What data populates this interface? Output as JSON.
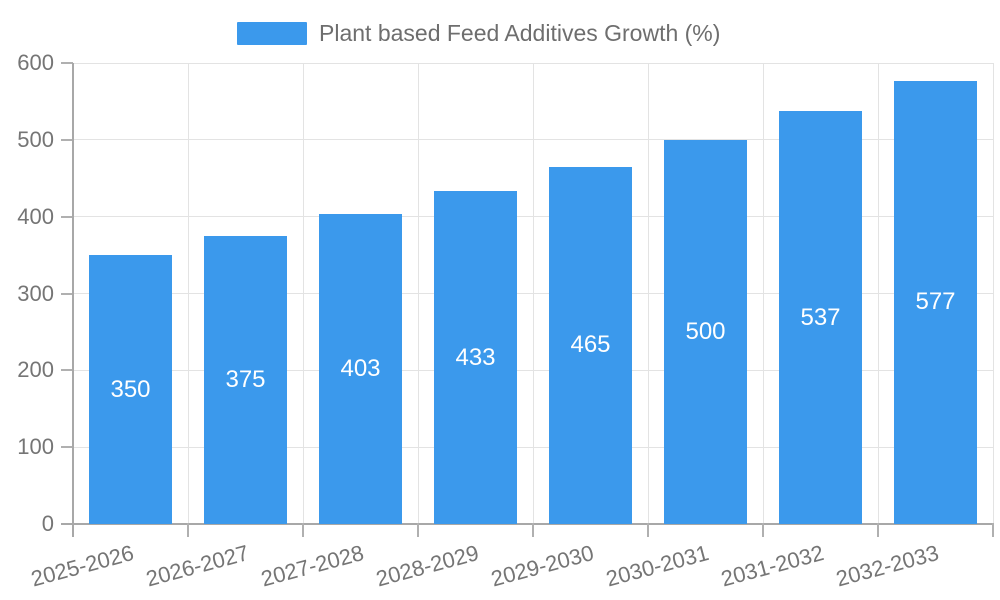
{
  "chart_data": {
    "type": "bar",
    "title": "Plant based Feed Additives Growth (%)",
    "categories": [
      "2025-2026",
      "2026-2027",
      "2027-2028",
      "2028-2029",
      "2029-2030",
      "2030-2031",
      "2031-2032",
      "2032-2033"
    ],
    "values": [
      350,
      375,
      403,
      433,
      465,
      500,
      537,
      577
    ],
    "xlabel": "",
    "ylabel": "",
    "ylim": [
      0,
      600
    ],
    "yticks": [
      0,
      100,
      200,
      300,
      400,
      500,
      600
    ],
    "grid": true,
    "legend_position": "top",
    "x_label_rotation_deg": -15,
    "colors": {
      "bar": "#3b99ec",
      "bar_value_text": "#ffffff",
      "axis_line": "#a8a8a8",
      "tick": "#b0b0b0",
      "gridline": "#e3e3e3",
      "axis_text": "#757575",
      "legend_text": "#6e6e6e",
      "background": "#ffffff"
    }
  },
  "legend": {
    "label": "Plant based Feed Additives Growth (%)",
    "swatch_color": "#3b99ec"
  }
}
